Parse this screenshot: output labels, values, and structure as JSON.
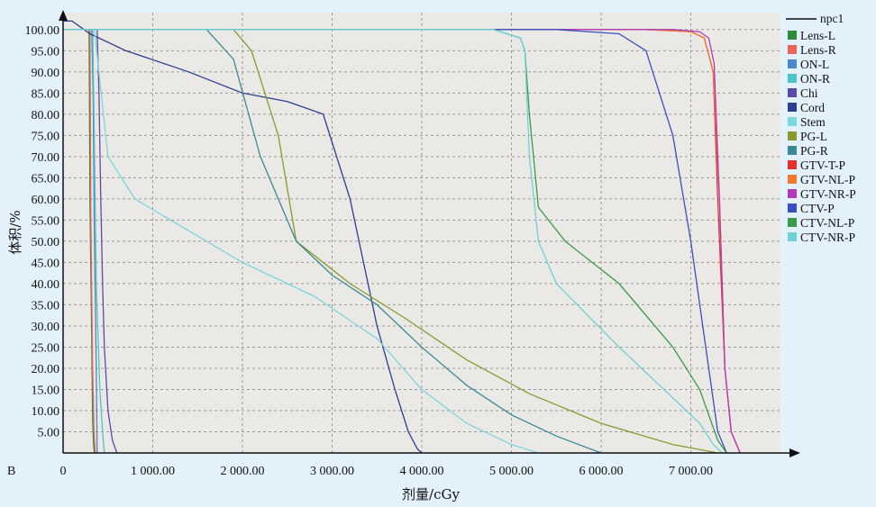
{
  "chart_data": {
    "type": "line",
    "panel_label": "B",
    "xlabel": "剂量/cGy",
    "ylabel": "体积/%",
    "xlim": [
      0,
      8000
    ],
    "ylim": [
      0,
      104
    ],
    "grid": true,
    "legend_position": "right",
    "x_ticks": [
      0,
      1000,
      2000,
      3000,
      4000,
      5000,
      6000,
      7000
    ],
    "x_tick_labels": [
      "0",
      "1 000.00",
      "2 000.00",
      "3 000.00",
      "4 000.00",
      "5 000.00",
      "6 000.00",
      "7 000.00"
    ],
    "y_ticks": [
      5,
      10,
      15,
      20,
      25,
      30,
      35,
      40,
      45,
      50,
      55,
      60,
      65,
      70,
      75,
      80,
      85,
      90,
      95,
      100
    ],
    "y_tick_labels": [
      "5.00",
      "10.00",
      "15.00",
      "20.00",
      "25.00",
      "30.00",
      "35.00",
      "40.00",
      "45.00",
      "50.00",
      "55.00",
      "60.00",
      "65.00",
      "70.00",
      "75.00",
      "80.00",
      "85.00",
      "90.00",
      "95.00",
      "100.00"
    ],
    "legend_header": "npc1",
    "series": [
      {
        "name": "Lens-L",
        "color": "#2e8b3a",
        "x": [
          0,
          290,
          300,
          320,
          330,
          340,
          350
        ],
        "y": [
          100,
          100,
          60,
          27,
          8,
          2,
          0
        ]
      },
      {
        "name": "Lens-R",
        "color": "#e8655a",
        "x": [
          0,
          300,
          310,
          330,
          345,
          360
        ],
        "y": [
          100,
          100,
          55,
          20,
          5,
          0
        ]
      },
      {
        "name": "ON-L",
        "color": "#4a86c8",
        "x": [
          0,
          320,
          335,
          350,
          370,
          380
        ],
        "y": [
          100,
          100,
          85,
          50,
          20,
          0
        ]
      },
      {
        "name": "ON-R",
        "color": "#4fc3c8",
        "x": [
          0,
          330,
          345,
          370,
          410,
          440,
          460
        ],
        "y": [
          100,
          100,
          80,
          40,
          15,
          5,
          0
        ]
      },
      {
        "name": "Chi",
        "color": "#5b4aa8",
        "x": [
          0,
          380,
          400,
          420,
          440,
          460,
          500,
          550,
          600
        ],
        "y": [
          100,
          100,
          85,
          60,
          40,
          25,
          10,
          3,
          0
        ]
      },
      {
        "name": "Cord",
        "color": "#2c3e8f",
        "x": [
          0,
          100,
          300,
          700,
          1400,
          2000,
          2500,
          2900,
          3200,
          3500,
          3700,
          3850,
          3950,
          4000
        ],
        "y": [
          102,
          102,
          99,
          95,
          90,
          85,
          83,
          80,
          60,
          30,
          15,
          5,
          1,
          0
        ]
      },
      {
        "name": "Stem",
        "color": "#7dd6dc",
        "x": [
          0,
          350,
          500,
          800,
          1200,
          2000,
          2800,
          3500,
          4000,
          4500,
          5000,
          5300
        ],
        "y": [
          100,
          100,
          70,
          60,
          55,
          45,
          37,
          27,
          15,
          7,
          2,
          0
        ]
      },
      {
        "name": "PG-L",
        "color": "#8a9a2e",
        "x": [
          0,
          1900,
          2100,
          2400,
          2600,
          3200,
          3800,
          4500,
          5200,
          6000,
          6800,
          7300
        ],
        "y": [
          100,
          100,
          95,
          75,
          50,
          40,
          32,
          22,
          14,
          7,
          2,
          0
        ]
      },
      {
        "name": "PG-R",
        "color": "#3a8a95",
        "x": [
          0,
          1600,
          1900,
          2200,
          2600,
          3000,
          3500,
          4000,
          4500,
          5000,
          5500,
          6000
        ],
        "y": [
          100,
          100,
          93,
          70,
          50,
          42,
          35,
          25,
          16,
          9,
          4,
          0
        ]
      },
      {
        "name": "GTV-T-P",
        "color": "#e63030",
        "x": [
          0,
          6500,
          7000,
          7150,
          7250,
          7300,
          7380,
          7450,
          7550
        ],
        "y": [
          100,
          100,
          99.5,
          98,
          90,
          60,
          20,
          5,
          0
        ]
      },
      {
        "name": "GTV-NL-P",
        "color": "#f07a2a",
        "x": [
          0,
          6500,
          7000,
          7150,
          7250,
          7320,
          7380,
          7450,
          7550
        ],
        "y": [
          100,
          100,
          99.5,
          98,
          90,
          60,
          20,
          5,
          0
        ]
      },
      {
        "name": "GTV-NR-P",
        "color": "#b03ab8",
        "x": [
          0,
          6800,
          7100,
          7200,
          7260,
          7320,
          7380,
          7450,
          7550
        ],
        "y": [
          100,
          100,
          99.5,
          98,
          92,
          60,
          20,
          5,
          0
        ]
      },
      {
        "name": "CTV-P",
        "color": "#3b4fc0",
        "x": [
          0,
          5500,
          6200,
          6500,
          6800,
          7000,
          7200,
          7300,
          7400
        ],
        "y": [
          100,
          100,
          99,
          95,
          75,
          50,
          20,
          5,
          0
        ]
      },
      {
        "name": "CTV-NL-P",
        "color": "#3c9a48",
        "x": [
          0,
          4800,
          5100,
          5150,
          5200,
          5300,
          5600,
          6200,
          6800,
          7100,
          7300,
          7400
        ],
        "y": [
          100,
          100,
          98,
          95,
          80,
          58,
          50,
          40,
          25,
          15,
          3,
          0
        ]
      },
      {
        "name": "CTV-NR-P",
        "color": "#6fd0d8",
        "x": [
          0,
          4800,
          5100,
          5150,
          5200,
          5300,
          5500,
          6200,
          6800,
          7100,
          7250,
          7350
        ],
        "y": [
          100,
          100,
          98,
          95,
          70,
          50,
          40,
          25,
          13,
          7,
          2,
          0
        ]
      }
    ]
  }
}
